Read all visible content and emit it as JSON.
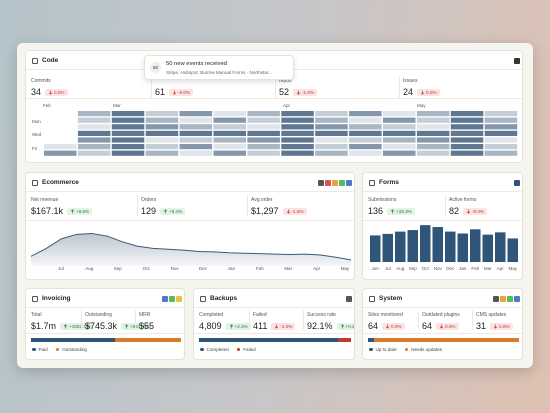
{
  "toast": {
    "badge": "50",
    "title": "50 new events received",
    "text": "Stripe, Hubspot, Burrow Manual Forms · Northstar..."
  },
  "code": {
    "title": "Code",
    "stats": [
      {
        "label": "Commits",
        "value": "34",
        "delta": "0.0%",
        "trend": "down"
      },
      {
        "value": "61",
        "delta": "-9.0%",
        "trend": "down"
      },
      {
        "label": "repos",
        "value": "52",
        "delta": "-1.0%",
        "trend": "down"
      },
      {
        "label": "Issues",
        "value": "24",
        "delta": "0.0%",
        "trend": "down"
      }
    ],
    "months": [
      "Feb",
      "Mar",
      "Apr",
      "May"
    ],
    "days": [
      "Mon",
      "Wed",
      "Fri"
    ]
  },
  "ecommerce": {
    "title": "Ecommerce",
    "stats": [
      {
        "label": "Net revenue",
        "value": "$167.1k",
        "delta": "+8.6%",
        "trend": "up"
      },
      {
        "label": "Orders",
        "value": "129",
        "delta": "+8.4%",
        "trend": "up"
      },
      {
        "label": "Avg.order",
        "value": "$1,297",
        "delta": "-1.6%",
        "trend": "down"
      }
    ],
    "chart": {
      "type": "area",
      "categories": [
        "Jul",
        "Aug",
        "Sep",
        "Oct",
        "Nov",
        "Dec",
        "Jan",
        "Feb",
        "Mar",
        "Apr",
        "May"
      ],
      "values": [
        22,
        40,
        62,
        72,
        74,
        68,
        55,
        45,
        40,
        38,
        36,
        33,
        32,
        30,
        29,
        28,
        27,
        26,
        27,
        25,
        20,
        14
      ],
      "ylim": [
        0,
        100
      ],
      "color": "#3d5a75"
    }
  },
  "forms": {
    "title": "Forms",
    "stats": [
      {
        "label": "Submissions",
        "value": "136",
        "delta": "+19.3%",
        "trend": "up"
      },
      {
        "label": "Active forms",
        "value": "82",
        "delta": "-6.0%",
        "trend": "down"
      }
    ],
    "chart": {
      "type": "bar",
      "categories": [
        "Jun",
        "Jul",
        "Aug",
        "Sep",
        "Oct",
        "Nov",
        "Dec",
        "Jan",
        "Feb",
        "Mar",
        "Apr",
        "May"
      ],
      "values": [
        70,
        74,
        80,
        84,
        97,
        92,
        80,
        75,
        86,
        72,
        78,
        62
      ],
      "ylim": [
        0,
        100
      ],
      "color": "#2f5578"
    }
  },
  "invoicing": {
    "title": "Invoicing",
    "stats": [
      {
        "label": "Total",
        "value": "$1.7m",
        "delta": "+1502.7%",
        "trend": "up"
      },
      {
        "label": "Outstanding",
        "value": "$745.3k",
        "delta": "+937.4%",
        "trend": "up"
      },
      {
        "label": "MRR",
        "value": "$55"
      }
    ],
    "split": {
      "series": [
        {
          "name": "Paid",
          "color": "#2f5578",
          "value": 56
        },
        {
          "name": "Outstanding",
          "color": "#d97a2b",
          "value": 44
        }
      ]
    }
  },
  "backups": {
    "title": "Backups",
    "stats": [
      {
        "label": "Completed",
        "value": "4,809",
        "delta": "+2.3%",
        "trend": "up"
      },
      {
        "label": "Failed",
        "value": "411",
        "delta": "-1.0%",
        "trend": "down"
      },
      {
        "label": "Success rate",
        "value": "92.1%",
        "delta": "+0.3",
        "trend": "up"
      }
    ],
    "split": {
      "series": [
        {
          "name": "Completed",
          "color": "#2f5578",
          "value": 92
        },
        {
          "name": "Failed",
          "color": "#c0392b",
          "value": 8
        }
      ]
    }
  },
  "system": {
    "title": "System",
    "stats": [
      {
        "label": "Sites monitored",
        "value": "64",
        "delta": "0.0%",
        "trend": "down"
      },
      {
        "label": "Outdated plugins",
        "value": "64",
        "delta": "0.0%",
        "trend": "down"
      },
      {
        "label": "CMS updates",
        "value": "31",
        "delta": "0.0%",
        "trend": "down"
      }
    ],
    "split": {
      "series": [
        {
          "name": "Up to date",
          "color": "#2f5578",
          "value": 4
        },
        {
          "name": "Needs updates",
          "color": "#d97a2b",
          "value": 96
        }
      ]
    }
  }
}
